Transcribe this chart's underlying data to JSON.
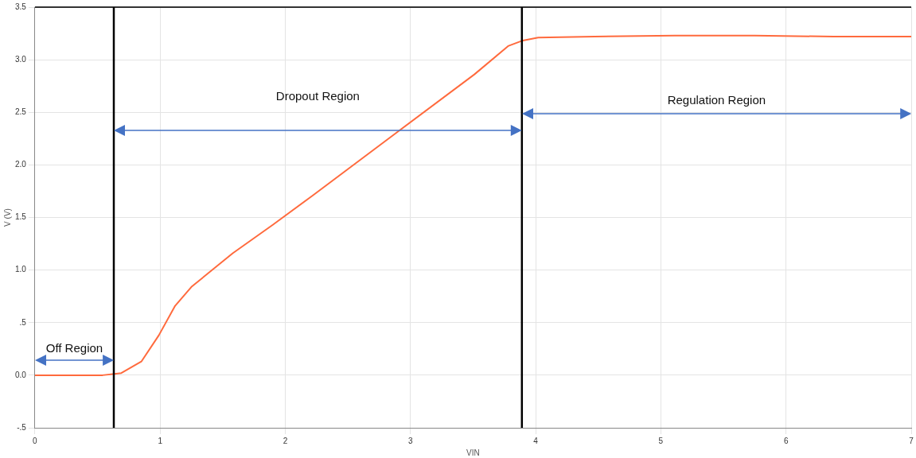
{
  "chart_data": {
    "type": "line",
    "xlabel": "VIN",
    "ylabel": "V (V)",
    "x": [
      0,
      0.54,
      0.69,
      0.85,
      0.99,
      1.12,
      1.25,
      1.58,
      1.9,
      2.22,
      2.87,
      3.51,
      3.78,
      3.89,
      4.02,
      4.47,
      5.11,
      5.75,
      6.38,
      7
    ],
    "series": [
      {
        "color": "#ff6a3d",
        "values": [
          0,
          0,
          0.02,
          0.13,
          0.38,
          0.66,
          0.84,
          1.16,
          1.43,
          1.71,
          2.29,
          2.86,
          3.13,
          3.18,
          3.21,
          3.22,
          3.23,
          3.23,
          3.22,
          3.22
        ]
      }
    ],
    "xlim": [
      0,
      7
    ],
    "xticks": [
      0,
      1,
      2,
      3,
      4,
      5,
      6,
      7
    ],
    "ylim": [
      -0.5,
      3.5
    ],
    "yticks": [
      {
        "value": -0.5,
        "label": "-.5"
      },
      {
        "value": 0,
        "label": "0.0"
      },
      {
        "value": 0.5,
        "label": ".5"
      },
      {
        "value": 1,
        "label": "1.0"
      },
      1.5,
      {
        "value": 2,
        "label": "2.0"
      },
      2.5,
      {
        "value": 3,
        "label": "3.0"
      },
      3.5
    ],
    "ref_lines": [
      {
        "axis": "x",
        "value": 0.63,
        "color": "#000000"
      },
      {
        "axis": "x",
        "value": 3.89,
        "color": "#000000"
      }
    ],
    "annotations": [
      "Off Region",
      "Dropout Region",
      "Regulation Region"
    ],
    "grid": true,
    "legend": false,
    "marker": "none",
    "line_style": "solid"
  }
}
